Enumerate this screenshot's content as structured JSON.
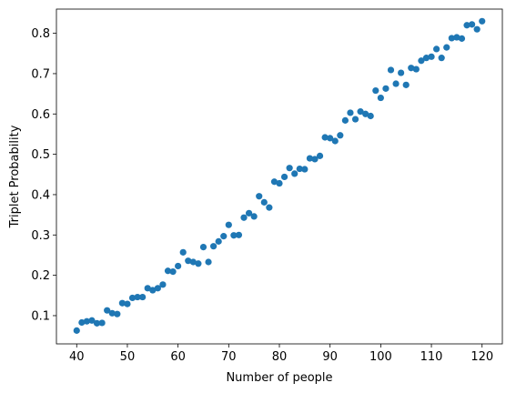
{
  "chart_data": {
    "type": "scatter",
    "title": "",
    "xlabel": "Number of people",
    "ylabel": "Triplet Probability",
    "xlim": [
      36,
      124
    ],
    "ylim": [
      0.03,
      0.86
    ],
    "xticks": [
      40,
      50,
      60,
      70,
      80,
      90,
      100,
      110,
      120
    ],
    "yticks": [
      0.1,
      0.2,
      0.3,
      0.4,
      0.5,
      0.6,
      0.7,
      0.8
    ],
    "grid": false,
    "marker_color": "#1f77b4",
    "series": [
      {
        "x": [
          40,
          41,
          42,
          43,
          44,
          45,
          46,
          47,
          48,
          49,
          50,
          51,
          52,
          53,
          54,
          55,
          56,
          57,
          58,
          59,
          60,
          61,
          62,
          63,
          64,
          65,
          66,
          67,
          68,
          69,
          70,
          71,
          72,
          73,
          74,
          75,
          76,
          77,
          78,
          79,
          80,
          81,
          82,
          83,
          84,
          85,
          86,
          87,
          88,
          89,
          90,
          91,
          92,
          93,
          94,
          95,
          96,
          97,
          98,
          99,
          100,
          101,
          102,
          103,
          104,
          105,
          106,
          107,
          108,
          109,
          110,
          111,
          112,
          113,
          114,
          115,
          116,
          117,
          118,
          119,
          120
        ],
        "y": [
          0.063,
          0.083,
          0.086,
          0.088,
          0.081,
          0.082,
          0.113,
          0.106,
          0.104,
          0.131,
          0.129,
          0.144,
          0.146,
          0.146,
          0.168,
          0.163,
          0.168,
          0.177,
          0.211,
          0.209,
          0.223,
          0.257,
          0.236,
          0.233,
          0.229,
          0.27,
          0.233,
          0.272,
          0.284,
          0.297,
          0.325,
          0.299,
          0.3,
          0.343,
          0.354,
          0.346,
          0.396,
          0.381,
          0.368,
          0.432,
          0.428,
          0.444,
          0.466,
          0.452,
          0.464,
          0.463,
          0.49,
          0.488,
          0.496,
          0.542,
          0.54,
          0.533,
          0.547,
          0.584,
          0.603,
          0.587,
          0.606,
          0.6,
          0.595,
          0.658,
          0.64,
          0.663,
          0.709,
          0.675,
          0.702,
          0.672,
          0.714,
          0.711,
          0.732,
          0.739,
          0.742,
          0.761,
          0.739,
          0.765,
          0.788,
          0.79,
          0.787,
          0.82,
          0.822,
          0.81,
          0.83
        ]
      }
    ]
  }
}
